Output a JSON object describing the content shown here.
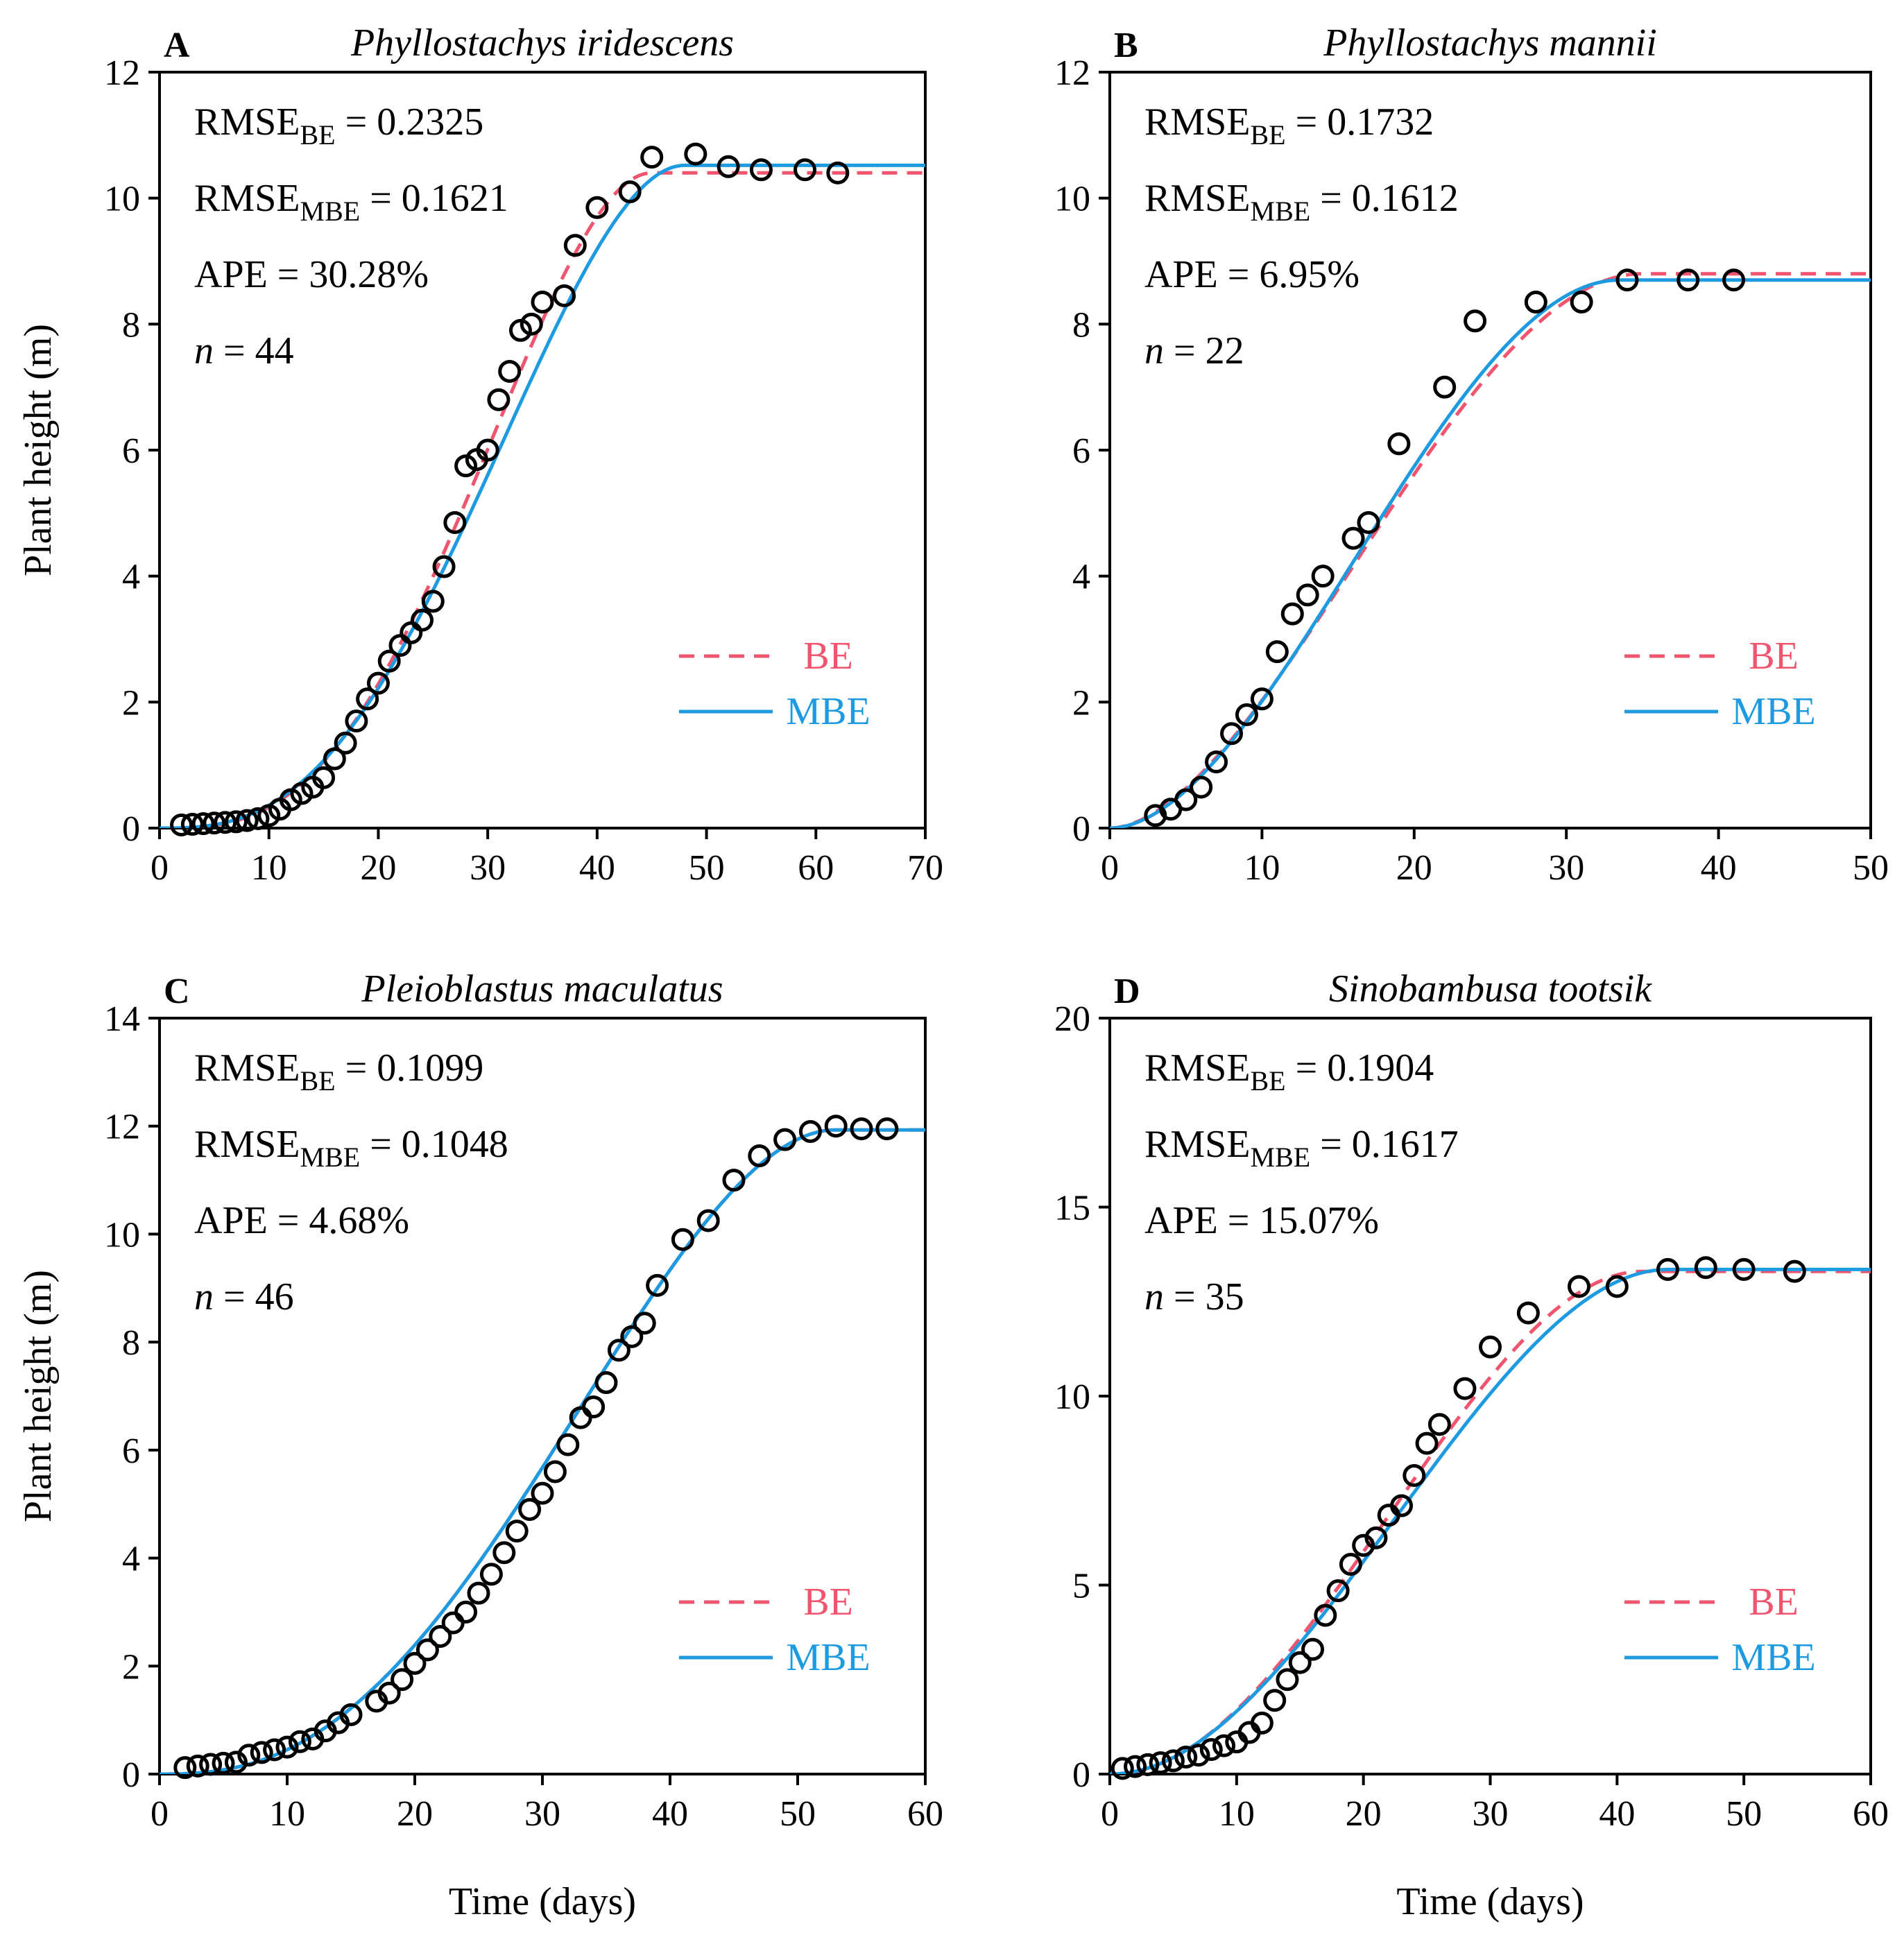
{
  "figure": {
    "xlabel": "Time (days)",
    "ylabel": "Plant height (m)",
    "colors": {
      "BE": "#f0546e",
      "MBE": "#1e9be0",
      "observed": "#000000"
    }
  },
  "chart_data": [
    {
      "type": "scatter",
      "panel": "A",
      "title": "Phyllostachys iridescens",
      "stats": {
        "rmse_be_label": "RMSE",
        "rmse_be_sub": "BE",
        "rmse_be_value": " = 0.2325",
        "rmse_mbe_label": "RMSE",
        "rmse_mbe_sub": "MBE",
        "rmse_mbe_value": " = 0.1621",
        "ape": "APE = 30.28%",
        "n_label": "n",
        "n_value": " = 44"
      },
      "legend": [
        "BE",
        "MBE"
      ],
      "xlim": [
        0,
        70
      ],
      "ylim": [
        0,
        12
      ],
      "xticks": [
        0,
        10,
        20,
        30,
        40,
        50,
        60,
        70
      ],
      "yticks": [
        0,
        2,
        4,
        6,
        8,
        10,
        12
      ],
      "observed": {
        "x": [
          2,
          3,
          4,
          5,
          6,
          7,
          8,
          9,
          10,
          11,
          12,
          13,
          14,
          15,
          16,
          17,
          18,
          19,
          20,
          21,
          22,
          23,
          24,
          25,
          26,
          27,
          28,
          29,
          30,
          31,
          32,
          33,
          34,
          35,
          37,
          38,
          40,
          43,
          45,
          49,
          52,
          55,
          59,
          62
        ],
        "y": [
          0.05,
          0.06,
          0.07,
          0.08,
          0.09,
          0.1,
          0.12,
          0.15,
          0.2,
          0.3,
          0.45,
          0.55,
          0.65,
          0.8,
          1.1,
          1.35,
          1.7,
          2.05,
          2.3,
          2.65,
          2.9,
          3.1,
          3.3,
          3.6,
          4.15,
          4.85,
          5.75,
          5.85,
          6.0,
          6.8,
          7.25,
          7.9,
          8.0,
          8.35,
          8.45,
          9.25,
          9.85,
          10.1,
          10.65,
          10.7,
          10.5,
          10.45,
          10.45,
          10.4
        ]
      },
      "BE": {
        "model": "beta",
        "wmax": 10.4,
        "tm": 30.5,
        "te": 45
      },
      "MBE": {
        "model": "beta",
        "wmax": 10.52,
        "tm": 31.5,
        "te": 48
      }
    },
    {
      "type": "scatter",
      "panel": "B",
      "title": "Phyllostachys mannii",
      "stats": {
        "rmse_be_label": "RMSE",
        "rmse_be_sub": "BE",
        "rmse_be_value": " = 0.1732",
        "rmse_mbe_label": "RMSE",
        "rmse_mbe_sub": "MBE",
        "rmse_mbe_value": " = 0.1612",
        "ape": "APE = 6.95%",
        "n_label": "n",
        "n_value": " = 22"
      },
      "legend": [
        "BE",
        "MBE"
      ],
      "xlim": [
        0,
        50
      ],
      "ylim": [
        0,
        12
      ],
      "xticks": [
        0,
        10,
        20,
        30,
        40,
        50
      ],
      "yticks": [
        0,
        2,
        4,
        6,
        8,
        10,
        12
      ],
      "observed": {
        "x": [
          3,
          4,
          5,
          6,
          7,
          8,
          9,
          10,
          11,
          12,
          13,
          14,
          16,
          17,
          19,
          22,
          24,
          28,
          31,
          34,
          38,
          41
        ],
        "y": [
          0.2,
          0.3,
          0.45,
          0.65,
          1.05,
          1.5,
          1.8,
          2.05,
          2.8,
          3.4,
          3.7,
          4.0,
          4.6,
          4.85,
          6.1,
          7.0,
          8.05,
          8.35,
          8.35,
          8.7,
          8.7,
          8.7
        ]
      },
      "BE": {
        "model": "beta",
        "wmax": 8.8,
        "tm": 16,
        "te": 35
      },
      "MBE": {
        "model": "beta",
        "wmax": 8.7,
        "tm": 16,
        "te": 33.5
      }
    },
    {
      "type": "scatter",
      "panel": "C",
      "title": "Pleioblastus maculatus",
      "stats": {
        "rmse_be_label": "RMSE",
        "rmse_be_sub": "BE",
        "rmse_be_value": " = 0.1099",
        "rmse_mbe_label": "RMSE",
        "rmse_mbe_sub": "MBE",
        "rmse_mbe_value": " = 0.1048",
        "ape": "APE = 4.68%",
        "n_label": "n",
        "n_value": " = 46"
      },
      "legend": [
        "BE",
        "MBE"
      ],
      "xlim": [
        0,
        60
      ],
      "ylim": [
        0,
        14
      ],
      "xticks": [
        0,
        10,
        20,
        30,
        40,
        50,
        60
      ],
      "yticks": [
        0,
        2,
        4,
        6,
        8,
        10,
        12,
        14
      ],
      "observed": {
        "x": [
          2,
          3,
          4,
          5,
          6,
          7,
          8,
          9,
          10,
          11,
          12,
          13,
          14,
          15,
          17,
          18,
          19,
          20,
          21,
          22,
          23,
          24,
          25,
          26,
          27,
          28,
          29,
          30,
          31,
          32,
          33,
          34,
          35,
          36,
          37,
          38,
          39,
          41,
          43,
          45,
          47,
          49,
          51,
          53,
          55,
          57
        ],
        "y": [
          0.12,
          0.15,
          0.18,
          0.2,
          0.22,
          0.35,
          0.4,
          0.45,
          0.5,
          0.6,
          0.65,
          0.8,
          0.95,
          1.1,
          1.35,
          1.5,
          1.75,
          2.05,
          2.3,
          2.55,
          2.8,
          3.0,
          3.35,
          3.7,
          4.1,
          4.5,
          4.9,
          5.2,
          5.6,
          6.1,
          6.6,
          6.8,
          7.25,
          7.85,
          8.1,
          8.35,
          9.05,
          9.9,
          10.25,
          11.0,
          11.45,
          11.75,
          11.9,
          12.0,
          11.95,
          11.95
        ]
      },
      "BE": {
        "model": "beta",
        "wmax": 11.93,
        "tm": 33,
        "te": 53
      },
      "MBE": {
        "model": "beta",
        "wmax": 11.93,
        "tm": 33,
        "te": 53
      }
    },
    {
      "type": "scatter",
      "panel": "D",
      "title": "Sinobambusa tootsik",
      "stats": {
        "rmse_be_label": "RMSE",
        "rmse_be_sub": "BE",
        "rmse_be_value": " = 0.1904",
        "rmse_mbe_label": "RMSE",
        "rmse_mbe_sub": "MBE",
        "rmse_mbe_value": " = 0.1617",
        "ape": "APE = 15.07%",
        "n_label": "n",
        "n_value": " = 35"
      },
      "legend": [
        "BE",
        "MBE"
      ],
      "xlim": [
        0,
        60
      ],
      "ylim": [
        0,
        20
      ],
      "xticks": [
        0,
        10,
        20,
        30,
        40,
        50,
        60
      ],
      "yticks": [
        0,
        5,
        10,
        15,
        20
      ],
      "observed": {
        "x": [
          1,
          2,
          3,
          4,
          5,
          6,
          7,
          8,
          9,
          10,
          11,
          12,
          13,
          14,
          15,
          16,
          17,
          18,
          19,
          20,
          21,
          22,
          23,
          24,
          25,
          26,
          28,
          30,
          33,
          37,
          40,
          44,
          47,
          50,
          54
        ],
        "y": [
          0.15,
          0.2,
          0.25,
          0.3,
          0.35,
          0.45,
          0.5,
          0.65,
          0.75,
          0.85,
          1.1,
          1.35,
          1.95,
          2.5,
          2.95,
          3.3,
          4.2,
          4.85,
          5.55,
          6.05,
          6.25,
          6.85,
          7.1,
          7.9,
          8.75,
          9.25,
          10.2,
          11.3,
          12.2,
          12.9,
          12.9,
          13.35,
          13.4,
          13.35,
          13.3
        ]
      },
      "BE": {
        "model": "beta",
        "wmax": 13.3,
        "tm": 22,
        "te": 42
      },
      "MBE": {
        "model": "beta",
        "wmax": 13.35,
        "tm": 22.5,
        "te": 44
      }
    }
  ]
}
